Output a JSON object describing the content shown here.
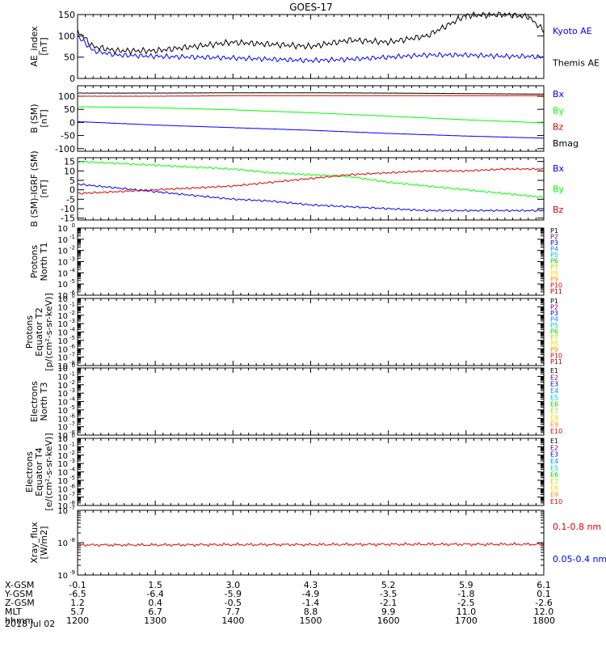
{
  "title": "GOES-17",
  "date_label": "2018 Jul 02",
  "colors": {
    "black": "#000000",
    "blue": "#0000ff",
    "red": "#e00000",
    "green": "#00ff00"
  },
  "band_colors": [
    "#000000",
    "#6a006a",
    "#0000cc",
    "#0088ff",
    "#00c8c8",
    "#00cc00",
    "#a8e000",
    "#ffd700",
    "#ff8c00",
    "#e00000",
    "#a00000"
  ],
  "orbit_table": {
    "row_labels": [
      "X-GSM",
      "Y-GSM",
      "Z-GSM",
      "MLT",
      "hhmm"
    ],
    "columns": [
      {
        "x": "-0.1",
        "y": "-6.5",
        "z": "1.2",
        "mlt": "5.7",
        "hhmm": "1200"
      },
      {
        "x": "1.5",
        "y": "-6.4",
        "z": "0.4",
        "mlt": "6.7",
        "hhmm": "1300"
      },
      {
        "x": "3.0",
        "y": "-5.9",
        "z": "-0.5",
        "mlt": "7.7",
        "hhmm": "1400"
      },
      {
        "x": "4.3",
        "y": "-4.9",
        "z": "-1.4",
        "mlt": "8.8",
        "hhmm": "1500"
      },
      {
        "x": "5.2",
        "y": "-3.5",
        "z": "-2.1",
        "mlt": "9.9",
        "hhmm": "1600"
      },
      {
        "x": "5.9",
        "y": "-1.8",
        "z": "-2.5",
        "mlt": "11.0",
        "hhmm": "1700"
      },
      {
        "x": "6.1",
        "y": "0.1",
        "z": "-2.6",
        "mlt": "12.0",
        "hhmm": "1800"
      }
    ]
  },
  "chart_data": [
    {
      "type": "line",
      "name": "AE index",
      "ylabel_lines": [
        "AE_index",
        "[nT]"
      ],
      "ylim": [
        0,
        150
      ],
      "yticks": [
        "0",
        "50",
        "100",
        "150"
      ],
      "ytick_values": [
        0,
        50,
        100,
        150
      ],
      "x": [
        0,
        0.2,
        0.5,
        1,
        1.5,
        2,
        2.5,
        3,
        3.5,
        4,
        4.5,
        5,
        5.5,
        5.8,
        6
      ],
      "series": [
        {
          "name": "Kyoto AE",
          "color": "blue",
          "values": [
            100,
            65,
            55,
            52,
            50,
            48,
            45,
            42,
            45,
            50,
            55,
            55,
            52,
            52,
            50
          ]
        },
        {
          "name": "Themis AE",
          "color": "black",
          "values": [
            112,
            75,
            65,
            65,
            75,
            85,
            80,
            75,
            90,
            85,
            100,
            148,
            150,
            145,
            112
          ]
        }
      ],
      "legend": [
        {
          "text": "Kyoto AE",
          "color": "blue"
        },
        {
          "text": "Themis AE",
          "color": "black"
        }
      ]
    },
    {
      "type": "line",
      "name": "B SM",
      "ylabel_lines": [
        "B (SM)",
        "[nT]"
      ],
      "ylim": [
        -110,
        140
      ],
      "yticks": [
        "-100",
        "-50",
        "0",
        "50",
        "100"
      ],
      "ytick_values": [
        -100,
        -50,
        0,
        50,
        100
      ],
      "x": [
        0,
        1,
        2,
        3,
        4,
        5,
        6
      ],
      "series": [
        {
          "name": "Bx",
          "color": "blue",
          "values": [
            3,
            -10,
            -20,
            -30,
            -42,
            -52,
            -60
          ]
        },
        {
          "name": "By",
          "color": "green",
          "values": [
            60,
            56,
            48,
            37,
            24,
            10,
            -2
          ]
        },
        {
          "name": "Bz",
          "color": "red",
          "values": [
            100,
            100,
            102,
            102,
            102,
            102,
            102
          ]
        },
        {
          "name": "Bmag",
          "color": "black",
          "values": [
            112,
            112,
            113,
            113,
            112,
            110,
            108
          ]
        }
      ],
      "legend": [
        {
          "text": "Bx",
          "color": "blue"
        },
        {
          "text": "By",
          "color": "green"
        },
        {
          "text": "Bz",
          "color": "red"
        },
        {
          "text": "Bmag",
          "color": "black"
        }
      ]
    },
    {
      "type": "line",
      "name": "B SM minus IGRF",
      "ylabel_lines": [
        "B (SM)-IGRF (SM)",
        "[nT]"
      ],
      "ylim": [
        -16,
        17
      ],
      "yticks": [
        "-15",
        "-10",
        "-5",
        "0",
        "5",
        "10",
        "15"
      ],
      "ytick_values": [
        -15,
        -10,
        -5,
        0,
        5,
        10,
        15
      ],
      "x": [
        0,
        0.5,
        1,
        1.5,
        2,
        2.5,
        3,
        3.5,
        4,
        4.5,
        5,
        5.5,
        6
      ],
      "series": [
        {
          "name": "Bx",
          "color": "blue",
          "values": [
            3,
            1,
            -1,
            -3,
            -5,
            -6,
            -8,
            -9,
            -10,
            -11,
            -11,
            -11,
            -11
          ]
        },
        {
          "name": "By",
          "color": "green",
          "values": [
            15,
            14,
            13,
            12,
            11,
            9,
            8,
            7,
            4,
            2,
            0,
            -2,
            -4
          ]
        },
        {
          "name": "Bz",
          "color": "red",
          "values": [
            -2,
            -1,
            0,
            1,
            2,
            4,
            6,
            8,
            9,
            10,
            10,
            11,
            11
          ]
        }
      ],
      "legend": [
        {
          "text": "Bx",
          "color": "blue"
        },
        {
          "text": "By",
          "color": "green"
        },
        {
          "text": "Bz",
          "color": "red"
        }
      ]
    },
    {
      "type": "line",
      "name": "Protons T1",
      "scale": "log",
      "ylabel_lines": [
        "Protons",
        "North T1"
      ],
      "yticks": [
        "10",
        "10",
        "10",
        "10",
        "10",
        "10",
        "10"
      ],
      "ytick_exps": [
        "0",
        "-1",
        "-2",
        "-3",
        "-4",
        "-5",
        "-6"
      ],
      "series": [],
      "legend": [
        "P1",
        "P2",
        "P3",
        "P4",
        "P5",
        "P6",
        "P7",
        "P8",
        "P9",
        "P10",
        "P11"
      ]
    },
    {
      "type": "line",
      "name": "Protons T2",
      "scale": "log",
      "ylabel_lines": [
        "Protons",
        "Equator T2",
        "[p/(cm²-s-sr-keV)]"
      ],
      "yticks": [
        "10",
        "10",
        "10",
        "10",
        "10",
        "10",
        "10",
        "10",
        "10"
      ],
      "ytick_exps": [
        "0",
        "-1",
        "-2",
        "-3",
        "-4",
        "-5",
        "-6",
        "-7",
        "-8"
      ],
      "series": [],
      "legend": [
        "P1",
        "P2",
        "P3",
        "P4",
        "P5",
        "P6",
        "P7",
        "P8",
        "P9",
        "P10",
        "P11"
      ]
    },
    {
      "type": "line",
      "name": "Electrons T3",
      "scale": "log",
      "ylabel_lines": [
        "Electrons",
        "North T3"
      ],
      "yticks": [
        "10",
        "10",
        "10",
        "10",
        "10",
        "10",
        "10",
        "10",
        "10"
      ],
      "ytick_exps": [
        "0",
        "-1",
        "-2",
        "-3",
        "-4",
        "-5",
        "-6",
        "-7",
        "-8"
      ],
      "series": [],
      "legend": [
        "E1",
        "E2",
        "E3",
        "E4",
        "E5",
        "E6",
        "E7",
        "E8",
        "E9",
        "E10"
      ]
    },
    {
      "type": "line",
      "name": "Electrons T4",
      "scale": "log",
      "ylabel_lines": [
        "Electrons",
        "Equator T4",
        "[e/(cm²-s-sr-keV)]"
      ],
      "yticks": [
        "10",
        "10",
        "10",
        "10",
        "10",
        "10",
        "10",
        "10",
        "10"
      ],
      "ytick_exps": [
        "0",
        "-1",
        "-2",
        "-3",
        "-4",
        "-5",
        "-6",
        "-7",
        "-8"
      ],
      "series": [],
      "legend": [
        "E1",
        "E2",
        "E3",
        "E4",
        "E5",
        "E6",
        "E7",
        "E8",
        "E9",
        "E10"
      ]
    },
    {
      "type": "line",
      "name": "Xray flux",
      "scale": "log",
      "ylabel_lines": [
        "Xray_flux",
        "[W/m2]"
      ],
      "yticks": [
        "10",
        "10",
        "10"
      ],
      "ytick_exps": [
        "-7",
        "-8",
        "-9"
      ],
      "x": [
        0,
        1,
        2,
        3,
        4,
        5,
        6
      ],
      "series": [
        {
          "name": "0.1-0.8 nm",
          "color": "red",
          "values_log10": [
            -8.07,
            -8.07,
            -8.06,
            -8.06,
            -8.05,
            -8.05,
            -8.05
          ]
        }
      ],
      "legend": [
        {
          "text": "0.1-0.8 nm",
          "color": "red"
        },
        {
          "text": "0.05-0.4 nm",
          "color": "blue"
        }
      ]
    }
  ]
}
